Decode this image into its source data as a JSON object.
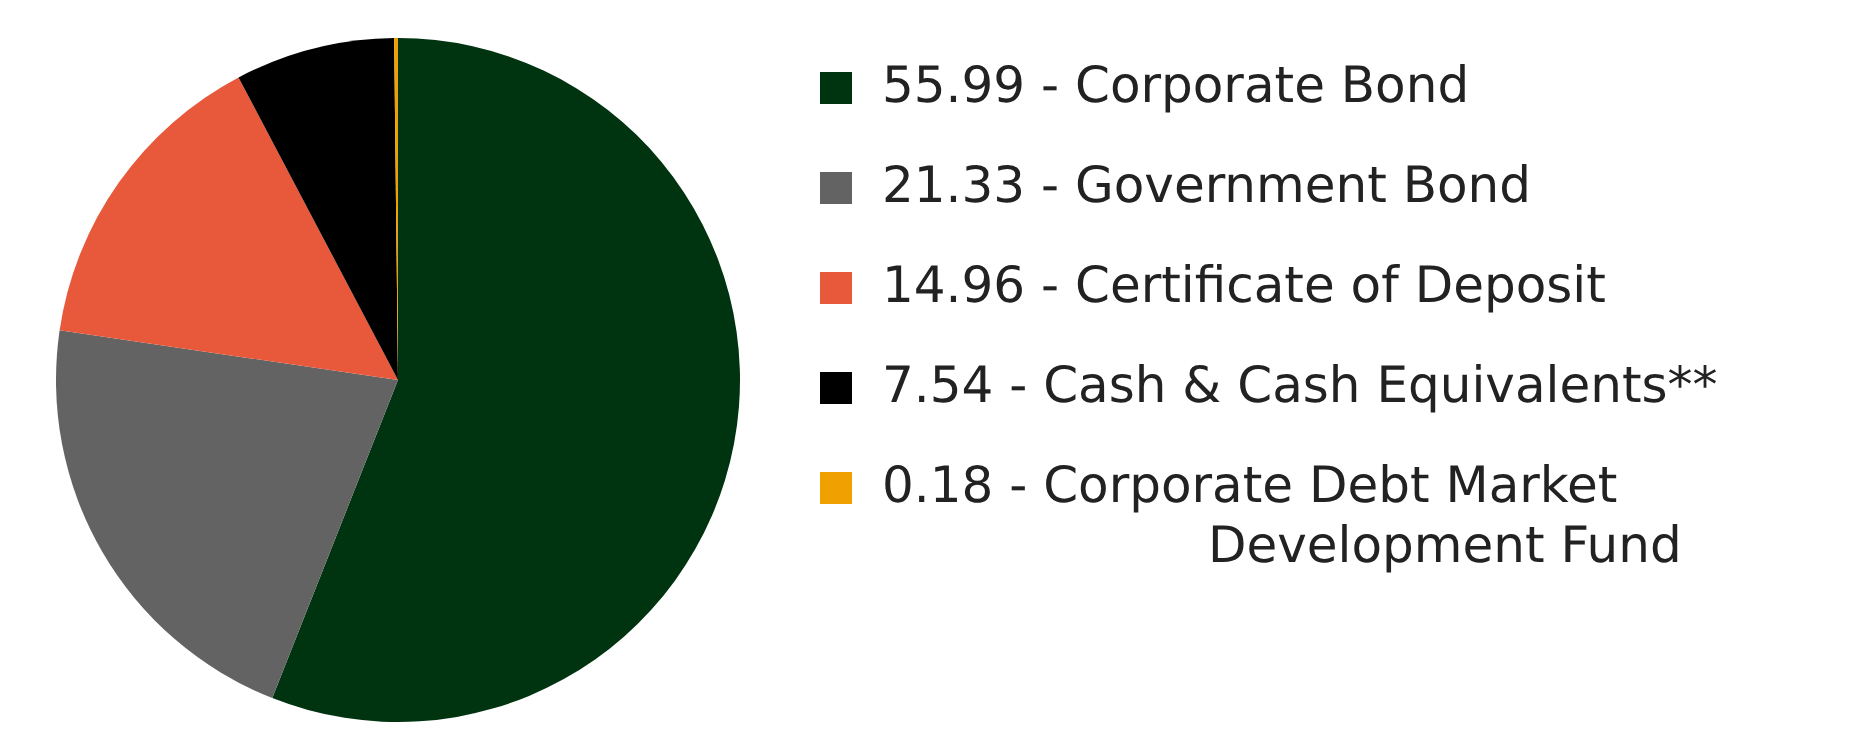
{
  "chart_data": {
    "type": "pie",
    "categories": [
      "Corporate Bond",
      "Government Bond",
      "Certificate of Deposit",
      "Cash & Cash Equivalents**",
      "Corporate Debt Market Development Fund"
    ],
    "values": [
      55.99,
      21.33,
      14.96,
      7.54,
      0.18
    ],
    "value_labels": [
      "55.99",
      "21.33",
      "14.96",
      "7.54",
      "0.18"
    ],
    "colors": [
      "#00330f",
      "#636363",
      "#e8583a",
      "#000000",
      "#f0a000"
    ],
    "legend": "right"
  }
}
